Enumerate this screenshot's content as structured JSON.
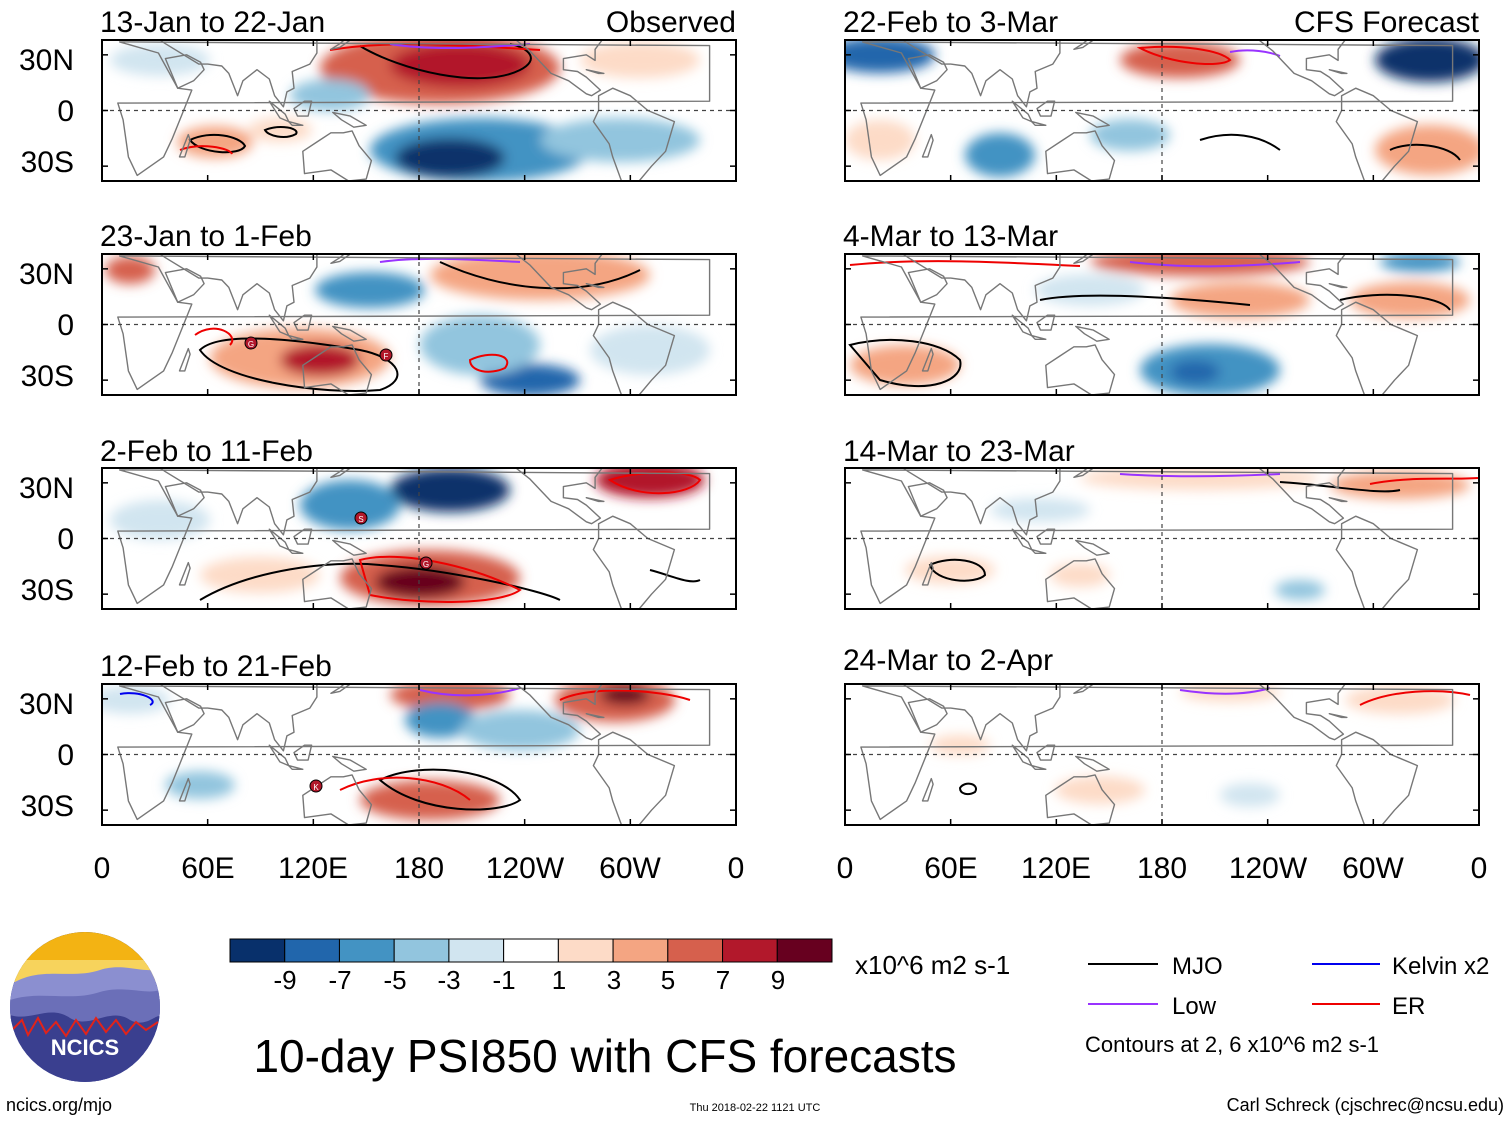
{
  "title": "10-day PSI850 with CFS forecasts",
  "left_label": "Observed",
  "right_label": "CFS Forecast",
  "panels_left": [
    {
      "period": "13-Jan to 22-Jan"
    },
    {
      "period": "23-Jan to 1-Feb"
    },
    {
      "period": "2-Feb to 11-Feb"
    },
    {
      "period": "12-Feb to 21-Feb"
    }
  ],
  "panels_right": [
    {
      "period": "22-Feb to 3-Mar"
    },
    {
      "period": "4-Mar to 13-Mar"
    },
    {
      "period": "14-Mar to 23-Mar"
    },
    {
      "period": "24-Mar to 2-Apr"
    }
  ],
  "lat_ticks": [
    "30N",
    "0",
    "30S"
  ],
  "lon_ticks": [
    "0",
    "60E",
    "120E",
    "180",
    "120W",
    "60W",
    "0"
  ],
  "colorbar": {
    "colors": [
      "#08306b",
      "#2166ac",
      "#4393c3",
      "#92c5de",
      "#d1e5f0",
      "#ffffff",
      "#fddbc7",
      "#f4a582",
      "#d6604d",
      "#b2182b",
      "#67001f"
    ],
    "labels": [
      "-9",
      "-7",
      "-5",
      "-3",
      "-1",
      "1",
      "3",
      "5",
      "7",
      "9"
    ],
    "units": "x10^6 m2 s-1"
  },
  "legend": {
    "items": [
      {
        "label": "MJO",
        "color": "#000000"
      },
      {
        "label": "Low",
        "color": "#9933ff"
      },
      {
        "label": "Kelvin x2",
        "color": "#0000ee"
      },
      {
        "label": "ER",
        "color": "#ee0000"
      }
    ],
    "note": "Contours at 2, 6 x10^6 m2 s-1"
  },
  "storm_markers": [
    "G",
    "F",
    "S",
    "G",
    "K"
  ],
  "logo_text": "NCICS",
  "footer": {
    "url": "ncics.org/mjo",
    "timestamp": "Thu 2018-02-22 1121 UTC",
    "credit": "Carl Schreck (cjschrec@ncsu.edu)"
  },
  "colors": {
    "neg_strong": "#08306b",
    "neg": "#4393c3",
    "neg_light": "#d1e5f0",
    "pos_light": "#fddbc7",
    "pos": "#d6604d",
    "pos_strong": "#67001f",
    "coast": "#777777"
  }
}
